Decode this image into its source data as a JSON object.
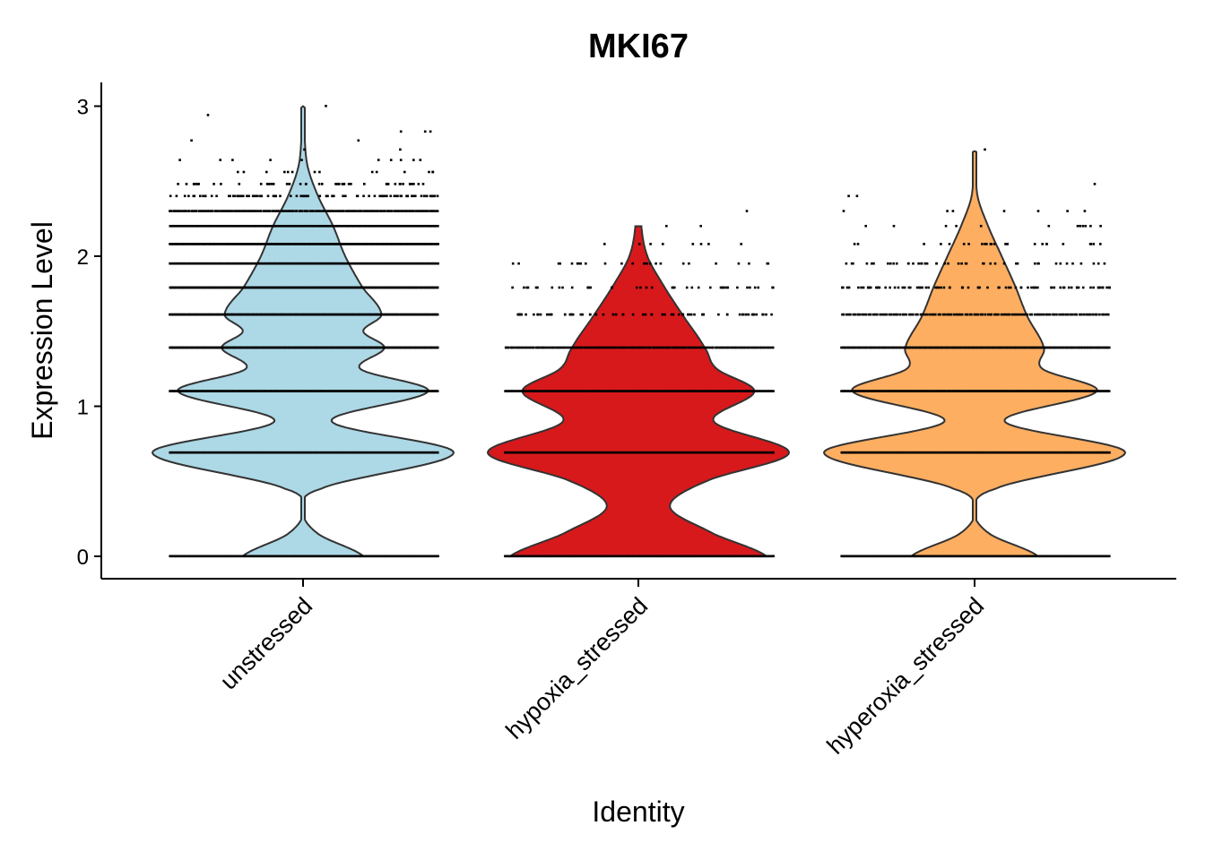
{
  "chart_data": {
    "type": "violin",
    "title": "MKI67",
    "xlabel": "Identity",
    "ylabel": "Expression Level",
    "ylim": [
      -0.15,
      3.15
    ],
    "yticks": [
      0,
      1,
      2,
      3
    ],
    "categories": [
      "unstressed",
      "hypoxia_stressed",
      "hyperoxia_stressed"
    ],
    "colors": [
      "#ADD8E6",
      "#D7191C",
      "#FDAE61"
    ],
    "outline_color": "#333333",
    "grid": false,
    "legend": "none",
    "density_knots": [
      [
        [
          0,
          0.4
        ],
        [
          0.15,
          0.1
        ],
        [
          0.3,
          0.0
        ],
        [
          0.45,
          0.12
        ],
        [
          0.69,
          1.0
        ],
        [
          0.9,
          0.19
        ],
        [
          1.1,
          0.83
        ],
        [
          1.25,
          0.38
        ],
        [
          1.39,
          0.54
        ],
        [
          1.5,
          0.4
        ],
        [
          1.61,
          0.52
        ],
        [
          1.8,
          0.39
        ],
        [
          2.0,
          0.28
        ],
        [
          2.2,
          0.2
        ],
        [
          2.4,
          0.1
        ],
        [
          2.6,
          0.03
        ],
        [
          2.8,
          0.01
        ],
        [
          3.0,
          0.0
        ]
      ],
      [
        [
          0,
          0.85
        ],
        [
          0.15,
          0.5
        ],
        [
          0.33,
          0.21
        ],
        [
          0.5,
          0.45
        ],
        [
          0.69,
          1.0
        ],
        [
          0.9,
          0.5
        ],
        [
          1.1,
          0.77
        ],
        [
          1.25,
          0.52
        ],
        [
          1.39,
          0.44
        ],
        [
          1.6,
          0.3
        ],
        [
          1.8,
          0.17
        ],
        [
          2.0,
          0.06
        ],
        [
          2.2,
          0.02
        ]
      ],
      [
        [
          0,
          0.42
        ],
        [
          0.15,
          0.1
        ],
        [
          0.3,
          0.0
        ],
        [
          0.45,
          0.14
        ],
        [
          0.69,
          1.0
        ],
        [
          0.9,
          0.2
        ],
        [
          1.1,
          0.81
        ],
        [
          1.25,
          0.45
        ],
        [
          1.39,
          0.46
        ],
        [
          1.6,
          0.35
        ],
        [
          1.8,
          0.27
        ],
        [
          2.0,
          0.18
        ],
        [
          2.2,
          0.09
        ],
        [
          2.4,
          0.02
        ],
        [
          2.6,
          0.01
        ],
        [
          2.7,
          0.0
        ]
      ]
    ],
    "expression_levels": [
      0,
      0.69,
      1.1,
      1.39,
      1.61,
      1.79,
      1.95,
      2.08,
      2.2,
      2.3,
      2.4,
      2.48,
      2.56,
      2.64,
      2.71,
      2.77,
      2.83,
      2.94,
      3.0
    ],
    "points_per_level": [
      [
        260,
        260,
        260,
        260,
        260,
        260,
        260,
        240,
        200,
        150,
        90,
        50,
        14,
        10,
        2,
        2,
        3,
        1,
        1
      ],
      [
        260,
        260,
        230,
        150,
        70,
        40,
        25,
        8,
        2,
        1,
        0,
        0,
        0,
        0,
        0,
        0,
        0,
        0,
        0
      ],
      [
        260,
        260,
        250,
        200,
        120,
        80,
        45,
        25,
        12,
        7,
        2,
        1,
        0,
        0,
        1,
        0,
        0,
        0,
        0
      ]
    ]
  }
}
